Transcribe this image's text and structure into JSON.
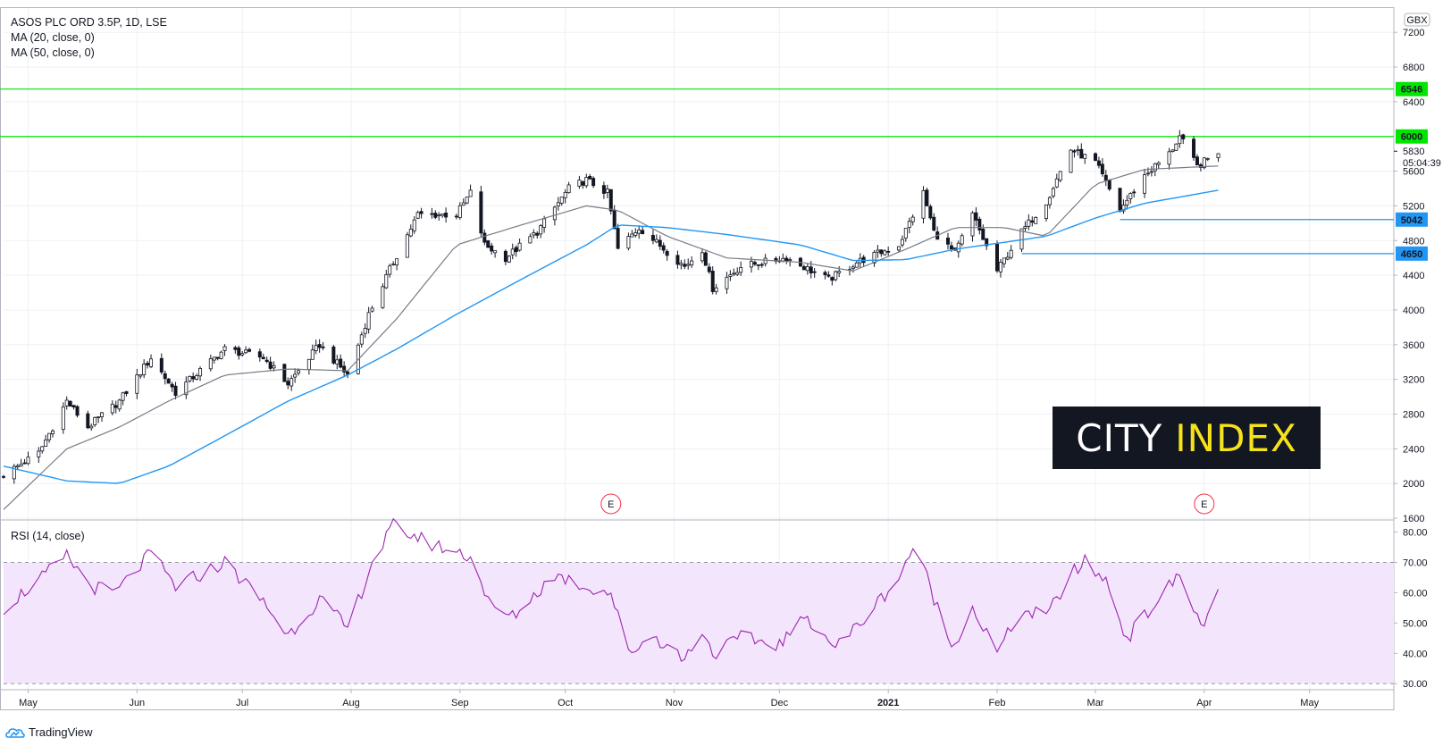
{
  "legend": {
    "title": "ASOS PLC ORD 3.5P, 1D, LSE",
    "ma20": "MA (20, close, 0)",
    "ma50": "MA (50, close, 0)",
    "rsi": "RSI (14, close)"
  },
  "currency": "GBX",
  "countdown": "05:04:39",
  "logo": {
    "word1": "CITY",
    "word2": "INDEX"
  },
  "branding": "TradingView",
  "earnings_marker": "E",
  "colors": {
    "up": "#ffffff",
    "down": "#131722",
    "ma20": "#787b86",
    "ma50": "#2196f3",
    "resistance": "#00e600",
    "support": "#2196f3",
    "rsi_line": "#9c27b0",
    "rsi_band": "#f3e5fc"
  },
  "chart_data": [
    {
      "type": "candlestick",
      "title": "ASOS PLC ORD 3.5P, 1D, LSE",
      "price_axis": {
        "ylim": [
          1580,
          7480
        ],
        "ticks": [
          1600,
          2000,
          2400,
          2800,
          3200,
          3600,
          4000,
          4400,
          4800,
          5200,
          5600,
          6400,
          6800,
          7200
        ]
      },
      "time_axis": {
        "labels": [
          "May",
          "Jun",
          "Jul",
          "Aug",
          "Sep",
          "Oct",
          "Nov",
          "Dec",
          "2021",
          "Feb",
          "Mar",
          "Apr",
          "May"
        ],
        "bold": [
          "2021"
        ],
        "range": [
          "2020-04-24",
          "2021-05-25"
        ]
      },
      "last_price": 5830,
      "horizontal_levels": [
        {
          "value": 6546,
          "kind": "resistance",
          "from": "start"
        },
        {
          "value": 6000,
          "kind": "resistance",
          "from": "start"
        },
        {
          "value": 5042,
          "kind": "support",
          "from": "2021-03-08"
        },
        {
          "value": 4650,
          "kind": "support",
          "from": "2021-02-08"
        }
      ],
      "earnings_dates": [
        "2020-10-14",
        "2021-04-01"
      ],
      "ohlc_anchors": [
        [
          "2020-04-24",
          2100
        ],
        [
          "2020-05-04",
          2350
        ],
        [
          "2020-05-12",
          2950
        ],
        [
          "2020-05-18",
          2650
        ],
        [
          "2020-05-27",
          2950
        ],
        [
          "2020-06-05",
          3450
        ],
        [
          "2020-06-12",
          3050
        ],
        [
          "2020-06-26",
          3550
        ],
        [
          "2020-07-07",
          3450
        ],
        [
          "2020-07-14",
          3150
        ],
        [
          "2020-07-23",
          3600
        ],
        [
          "2020-07-31",
          3250
        ],
        [
          "2020-08-06",
          3950
        ],
        [
          "2020-08-13",
          4550
        ],
        [
          "2020-08-20",
          5100
        ],
        [
          "2020-08-31",
          5100
        ],
        [
          "2020-09-04",
          5350
        ],
        [
          "2020-09-08",
          4750
        ],
        [
          "2020-09-14",
          4600
        ],
        [
          "2020-09-23",
          4900
        ],
        [
          "2020-10-02",
          5400
        ],
        [
          "2020-10-07",
          5500
        ],
        [
          "2020-10-13",
          5350
        ],
        [
          "2020-10-16",
          4700
        ],
        [
          "2020-10-22",
          4950
        ],
        [
          "2020-11-04",
          4500
        ],
        [
          "2020-11-09",
          4700
        ],
        [
          "2020-11-12",
          4250
        ],
        [
          "2020-11-20",
          4500
        ],
        [
          "2020-12-03",
          4600
        ],
        [
          "2020-12-15",
          4350
        ],
        [
          "2020-12-23",
          4550
        ],
        [
          "2021-01-04",
          4750
        ],
        [
          "2021-01-11",
          5350
        ],
        [
          "2021-01-14",
          4900
        ],
        [
          "2021-01-20",
          4650
        ],
        [
          "2021-01-25",
          5100
        ],
        [
          "2021-02-01",
          4450
        ],
        [
          "2021-02-08",
          4900
        ],
        [
          "2021-02-15",
          5250
        ],
        [
          "2021-02-22",
          5850
        ],
        [
          "2021-03-01",
          5700
        ],
        [
          "2021-03-08",
          5150
        ],
        [
          "2021-03-15",
          5550
        ],
        [
          "2021-03-22",
          5800
        ],
        [
          "2021-03-25",
          6000
        ],
        [
          "2021-03-30",
          5650
        ],
        [
          "2021-04-05",
          5830
        ]
      ],
      "ma20_anchors": [
        [
          "2020-04-24",
          1700
        ],
        [
          "2020-05-12",
          2400
        ],
        [
          "2020-05-27",
          2650
        ],
        [
          "2020-06-10",
          2950
        ],
        [
          "2020-06-26",
          3250
        ],
        [
          "2020-07-14",
          3320
        ],
        [
          "2020-07-31",
          3300
        ],
        [
          "2020-08-14",
          3900
        ],
        [
          "2020-08-31",
          4750
        ],
        [
          "2020-09-16",
          4950
        ],
        [
          "2020-10-07",
          5200
        ],
        [
          "2020-10-16",
          5150
        ],
        [
          "2020-10-30",
          4850
        ],
        [
          "2020-11-16",
          4600
        ],
        [
          "2020-12-07",
          4550
        ],
        [
          "2020-12-22",
          4450
        ],
        [
          "2021-01-06",
          4700
        ],
        [
          "2021-01-20",
          4950
        ],
        [
          "2021-02-03",
          4950
        ],
        [
          "2021-02-15",
          4850
        ],
        [
          "2021-03-01",
          5450
        ],
        [
          "2021-03-15",
          5620
        ],
        [
          "2021-04-05",
          5660
        ]
      ],
      "ma50_anchors": [
        [
          "2020-04-24",
          2200
        ],
        [
          "2020-05-12",
          2030
        ],
        [
          "2020-05-27",
          2000
        ],
        [
          "2020-06-10",
          2200
        ],
        [
          "2020-06-26",
          2550
        ],
        [
          "2020-07-14",
          2950
        ],
        [
          "2020-07-31",
          3250
        ],
        [
          "2020-08-14",
          3550
        ],
        [
          "2020-08-31",
          3950
        ],
        [
          "2020-09-16",
          4300
        ],
        [
          "2020-10-07",
          4750
        ],
        [
          "2020-10-16",
          4980
        ],
        [
          "2020-10-30",
          4950
        ],
        [
          "2020-11-16",
          4870
        ],
        [
          "2020-12-07",
          4750
        ],
        [
          "2020-12-22",
          4570
        ],
        [
          "2021-01-06",
          4580
        ],
        [
          "2021-01-20",
          4700
        ],
        [
          "2021-02-03",
          4780
        ],
        [
          "2021-02-15",
          4850
        ],
        [
          "2021-03-01",
          5060
        ],
        [
          "2021-03-15",
          5230
        ],
        [
          "2021-04-05",
          5380
        ]
      ]
    },
    {
      "type": "line",
      "title": "RSI (14, close)",
      "ylim": [
        28,
        84
      ],
      "ticks": [
        30,
        40,
        50,
        60,
        70,
        80
      ],
      "band": [
        30,
        70
      ],
      "anchors": [
        [
          "2020-04-24",
          55
        ],
        [
          "2020-05-05",
          65
        ],
        [
          "2020-05-12",
          72
        ],
        [
          "2020-05-19",
          62
        ],
        [
          "2020-05-26",
          60
        ],
        [
          "2020-06-05",
          73
        ],
        [
          "2020-06-12",
          62
        ],
        [
          "2020-06-26",
          70
        ],
        [
          "2020-07-07",
          57
        ],
        [
          "2020-07-14",
          46
        ],
        [
          "2020-07-23",
          58
        ],
        [
          "2020-07-31",
          48
        ],
        [
          "2020-08-07",
          70
        ],
        [
          "2020-08-13",
          82
        ],
        [
          "2020-08-24",
          76
        ],
        [
          "2020-09-04",
          72
        ],
        [
          "2020-09-10",
          55
        ],
        [
          "2020-09-16",
          52
        ],
        [
          "2020-09-28",
          66
        ],
        [
          "2020-10-07",
          62
        ],
        [
          "2020-10-14",
          60
        ],
        [
          "2020-10-19",
          40
        ],
        [
          "2020-10-26",
          46
        ],
        [
          "2020-11-04",
          38
        ],
        [
          "2020-11-09",
          48
        ],
        [
          "2020-11-12",
          40
        ],
        [
          "2020-11-20",
          45
        ],
        [
          "2020-12-01",
          43
        ],
        [
          "2020-12-09",
          52
        ],
        [
          "2020-12-17",
          42
        ],
        [
          "2020-12-24",
          50
        ],
        [
          "2021-01-04",
          65
        ],
        [
          "2021-01-08",
          75
        ],
        [
          "2021-01-12",
          65
        ],
        [
          "2021-01-19",
          42
        ],
        [
          "2021-01-25",
          55
        ],
        [
          "2021-02-01",
          40
        ],
        [
          "2021-02-08",
          54
        ],
        [
          "2021-02-15",
          52
        ],
        [
          "2021-02-22",
          66
        ],
        [
          "2021-02-26",
          70
        ],
        [
          "2021-03-04",
          64
        ],
        [
          "2021-03-10",
          45
        ],
        [
          "2021-03-17",
          55
        ],
        [
          "2021-03-25",
          66
        ],
        [
          "2021-03-31",
          49
        ],
        [
          "2021-04-05",
          59
        ]
      ]
    }
  ]
}
